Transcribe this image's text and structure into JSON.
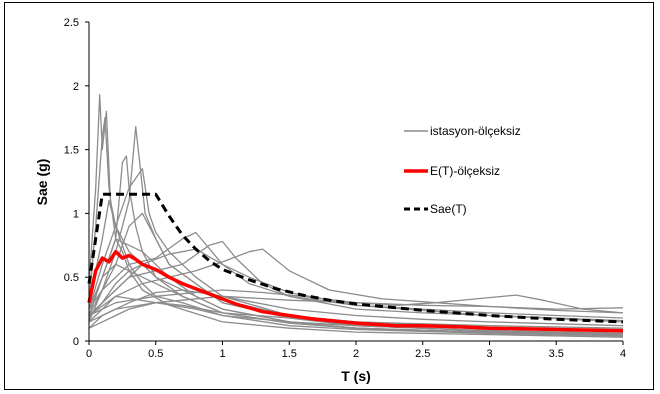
{
  "chart_data": {
    "type": "line",
    "title": "",
    "xlabel": "T (s)",
    "ylabel": "Sae (g)",
    "xlim": [
      0,
      4
    ],
    "ylim": [
      0,
      2.5
    ],
    "xticks": [
      "0",
      "0.5",
      "1",
      "1.5",
      "2",
      "2.5",
      "3",
      "3.5",
      "4"
    ],
    "yticks": [
      "0",
      "0.5",
      "1",
      "1.5",
      "2",
      "2.5"
    ],
    "grid": false,
    "legend_position": "right",
    "colors": {
      "stations": "#8c8c8c",
      "mean": "#ff0000",
      "design": "#000000"
    },
    "legend": [
      {
        "label": "istasyon-ölçeksiz",
        "series": "stations"
      },
      {
        "label": "E(T)-ölçeksiz",
        "series": "mean"
      },
      {
        "label": "Sae(T)",
        "series": "design"
      }
    ],
    "series": [
      {
        "name": "Sae(T)",
        "role": "design",
        "x": [
          0,
          0.1,
          0.5,
          0.6,
          0.7,
          0.8,
          0.9,
          1.0,
          1.2,
          1.4,
          1.6,
          1.8,
          2.0,
          2.2,
          2.5,
          3.0,
          3.5,
          4.0
        ],
        "y": [
          0.45,
          1.15,
          1.15,
          0.98,
          0.83,
          0.72,
          0.63,
          0.56,
          0.48,
          0.41,
          0.36,
          0.32,
          0.29,
          0.27,
          0.24,
          0.2,
          0.17,
          0.15
        ]
      },
      {
        "name": "E(T)-ölçeksiz",
        "role": "mean",
        "x": [
          0,
          0.05,
          0.1,
          0.15,
          0.2,
          0.25,
          0.3,
          0.35,
          0.4,
          0.5,
          0.6,
          0.7,
          0.8,
          0.9,
          1.0,
          1.1,
          1.2,
          1.3,
          1.5,
          1.7,
          2.0,
          2.3,
          2.5,
          2.8,
          3.0,
          3.5,
          4.0
        ],
        "y": [
          0.3,
          0.55,
          0.65,
          0.62,
          0.7,
          0.65,
          0.67,
          0.64,
          0.6,
          0.56,
          0.5,
          0.45,
          0.41,
          0.37,
          0.33,
          0.29,
          0.26,
          0.23,
          0.2,
          0.17,
          0.14,
          0.12,
          0.12,
          0.11,
          0.1,
          0.09,
          0.08
        ]
      },
      {
        "role": "station",
        "x": [
          0,
          0.05,
          0.08,
          0.1,
          0.13,
          0.16,
          0.2,
          0.25,
          0.3,
          0.4,
          0.5,
          0.7,
          1.0,
          1.5,
          2.0,
          3.0,
          4.0
        ],
        "y": [
          0.45,
          1.2,
          1.93,
          1.5,
          1.8,
          1.1,
          0.9,
          0.75,
          0.6,
          0.45,
          0.35,
          0.3,
          0.2,
          0.12,
          0.09,
          0.06,
          0.04
        ]
      },
      {
        "role": "station",
        "x": [
          0,
          0.05,
          0.1,
          0.12,
          0.15,
          0.2,
          0.25,
          0.3,
          0.4,
          0.6,
          1.0,
          1.5,
          2.0,
          3.0,
          4.0
        ],
        "y": [
          0.3,
          0.9,
          1.6,
          1.75,
          1.2,
          0.8,
          0.7,
          0.55,
          0.4,
          0.28,
          0.15,
          0.1,
          0.07,
          0.05,
          0.03
        ]
      },
      {
        "role": "station",
        "x": [
          0,
          0.1,
          0.2,
          0.25,
          0.28,
          0.3,
          0.35,
          0.4,
          0.5,
          0.7,
          1.0,
          1.5,
          2.0,
          3.0,
          4.0
        ],
        "y": [
          0.2,
          0.5,
          0.8,
          1.4,
          1.45,
          1.2,
          0.9,
          0.7,
          0.5,
          0.35,
          0.22,
          0.14,
          0.1,
          0.07,
          0.05
        ]
      },
      {
        "role": "station",
        "x": [
          0,
          0.1,
          0.2,
          0.3,
          0.35,
          0.38,
          0.42,
          0.5,
          0.6,
          0.8,
          1.0,
          1.5,
          2.0,
          3.0,
          4.0
        ],
        "y": [
          0.15,
          0.4,
          0.7,
          1.1,
          1.68,
          1.4,
          1.0,
          0.8,
          0.6,
          0.45,
          0.3,
          0.18,
          0.12,
          0.08,
          0.06
        ]
      },
      {
        "role": "station",
        "x": [
          0,
          0.1,
          0.2,
          0.3,
          0.4,
          0.45,
          0.5,
          0.6,
          0.8,
          1.0,
          1.5,
          2.0,
          3.0,
          4.0
        ],
        "y": [
          0.25,
          0.6,
          0.9,
          1.2,
          1.35,
          1.0,
          0.85,
          0.7,
          0.5,
          0.35,
          0.2,
          0.15,
          0.1,
          0.08
        ]
      },
      {
        "role": "station",
        "x": [
          0,
          0.1,
          0.2,
          0.3,
          0.5,
          0.7,
          0.8,
          1.0,
          1.2,
          1.5,
          2.0,
          2.5,
          3.0,
          3.5,
          4.0
        ],
        "y": [
          0.25,
          0.4,
          0.5,
          0.6,
          0.65,
          0.8,
          0.85,
          0.6,
          0.45,
          0.35,
          0.25,
          0.22,
          0.2,
          0.18,
          0.16
        ]
      },
      {
        "role": "station",
        "x": [
          0,
          0.15,
          0.3,
          0.5,
          0.7,
          0.9,
          1.0,
          1.1,
          1.3,
          1.5,
          2.0,
          2.5,
          3.0,
          3.5,
          4.0
        ],
        "y": [
          0.2,
          0.35,
          0.5,
          0.55,
          0.6,
          0.75,
          0.78,
          0.65,
          0.45,
          0.35,
          0.28,
          0.25,
          0.22,
          0.2,
          0.18
        ]
      },
      {
        "role": "station",
        "x": [
          0,
          0.2,
          0.4,
          0.6,
          0.8,
          1.0,
          1.2,
          1.3,
          1.5,
          1.8,
          2.2,
          2.6,
          3.0,
          3.5,
          4.0
        ],
        "y": [
          0.2,
          0.35,
          0.45,
          0.5,
          0.55,
          0.62,
          0.7,
          0.72,
          0.55,
          0.4,
          0.33,
          0.3,
          0.27,
          0.24,
          0.22
        ]
      },
      {
        "role": "station",
        "x": [
          0,
          0.2,
          0.5,
          0.8,
          1.0,
          1.3,
          1.6,
          2.0,
          2.3,
          2.6,
          2.9,
          3.2,
          3.4,
          3.7,
          4.0
        ],
        "y": [
          0.2,
          0.3,
          0.35,
          0.38,
          0.4,
          0.38,
          0.35,
          0.3,
          0.28,
          0.3,
          0.33,
          0.36,
          0.32,
          0.25,
          0.22
        ]
      },
      {
        "role": "station",
        "x": [
          0,
          0.2,
          0.5,
          1.0,
          1.5,
          2.0,
          2.5,
          3.0,
          3.5,
          4.0
        ],
        "y": [
          0.15,
          0.25,
          0.3,
          0.35,
          0.32,
          0.3,
          0.28,
          0.27,
          0.25,
          0.26
        ]
      },
      {
        "role": "station",
        "x": [
          0,
          0.1,
          0.2,
          0.4,
          0.6,
          0.8,
          1.0,
          1.5,
          2.0,
          2.5,
          3.0,
          3.5,
          4.0
        ],
        "y": [
          0.2,
          0.5,
          0.8,
          0.7,
          0.5,
          0.35,
          0.25,
          0.15,
          0.1,
          0.08,
          0.07,
          0.06,
          0.05
        ]
      },
      {
        "role": "station",
        "x": [
          0,
          0.1,
          0.2,
          0.3,
          0.5,
          0.7,
          1.0,
          1.5,
          2.0,
          3.0,
          4.0
        ],
        "y": [
          0.25,
          0.5,
          0.6,
          0.55,
          0.45,
          0.35,
          0.22,
          0.14,
          0.1,
          0.07,
          0.05
        ]
      },
      {
        "role": "station",
        "x": [
          0,
          0.1,
          0.2,
          0.3,
          0.4,
          0.6,
          0.8,
          1.0,
          1.5,
          2.0,
          3.0,
          4.0
        ],
        "y": [
          0.18,
          0.3,
          0.45,
          0.55,
          0.6,
          0.5,
          0.4,
          0.32,
          0.2,
          0.15,
          0.1,
          0.08
        ]
      },
      {
        "role": "station",
        "x": [
          0,
          0.1,
          0.3,
          0.5,
          0.7,
          1.0,
          1.5,
          2.0,
          2.5,
          3.0,
          4.0
        ],
        "y": [
          0.1,
          0.2,
          0.3,
          0.38,
          0.4,
          0.35,
          0.25,
          0.2,
          0.17,
          0.15,
          0.12
        ]
      },
      {
        "role": "station",
        "x": [
          0,
          0.1,
          0.2,
          0.5,
          0.8,
          1.0,
          1.5,
          2.0,
          3.0,
          4.0
        ],
        "y": [
          0.15,
          0.25,
          0.35,
          0.3,
          0.25,
          0.2,
          0.15,
          0.12,
          0.08,
          0.06
        ]
      },
      {
        "role": "station",
        "x": [
          0,
          0.1,
          0.15,
          0.2,
          0.3,
          0.5,
          0.8,
          1.0,
          1.5,
          2.0,
          3.0,
          4.0
        ],
        "y": [
          0.3,
          0.8,
          1.1,
          0.9,
          0.7,
          0.5,
          0.35,
          0.25,
          0.15,
          0.1,
          0.06,
          0.04
        ]
      },
      {
        "role": "station",
        "x": [
          0,
          0.1,
          0.2,
          0.3,
          0.4,
          0.5,
          0.6,
          0.8,
          1.0,
          1.5,
          2.0,
          3.0,
          4.0
        ],
        "y": [
          0.2,
          0.4,
          0.6,
          0.9,
          1.0,
          0.8,
          0.6,
          0.45,
          0.3,
          0.18,
          0.12,
          0.08,
          0.06
        ]
      },
      {
        "role": "station",
        "x": [
          0,
          0.1,
          0.2,
          0.3,
          0.5,
          0.7,
          1.0,
          1.5,
          2.0,
          3.0,
          4.0
        ],
        "y": [
          0.1,
          0.15,
          0.2,
          0.25,
          0.3,
          0.28,
          0.22,
          0.18,
          0.15,
          0.12,
          0.1
        ]
      },
      {
        "role": "station",
        "x": [
          0,
          0.2,
          0.4,
          0.6,
          0.8,
          1.0,
          1.2,
          1.5,
          2.0,
          3.0,
          4.0
        ],
        "y": [
          0.2,
          0.4,
          0.6,
          0.68,
          0.72,
          0.6,
          0.5,
          0.38,
          0.28,
          0.2,
          0.15
        ]
      }
    ]
  }
}
